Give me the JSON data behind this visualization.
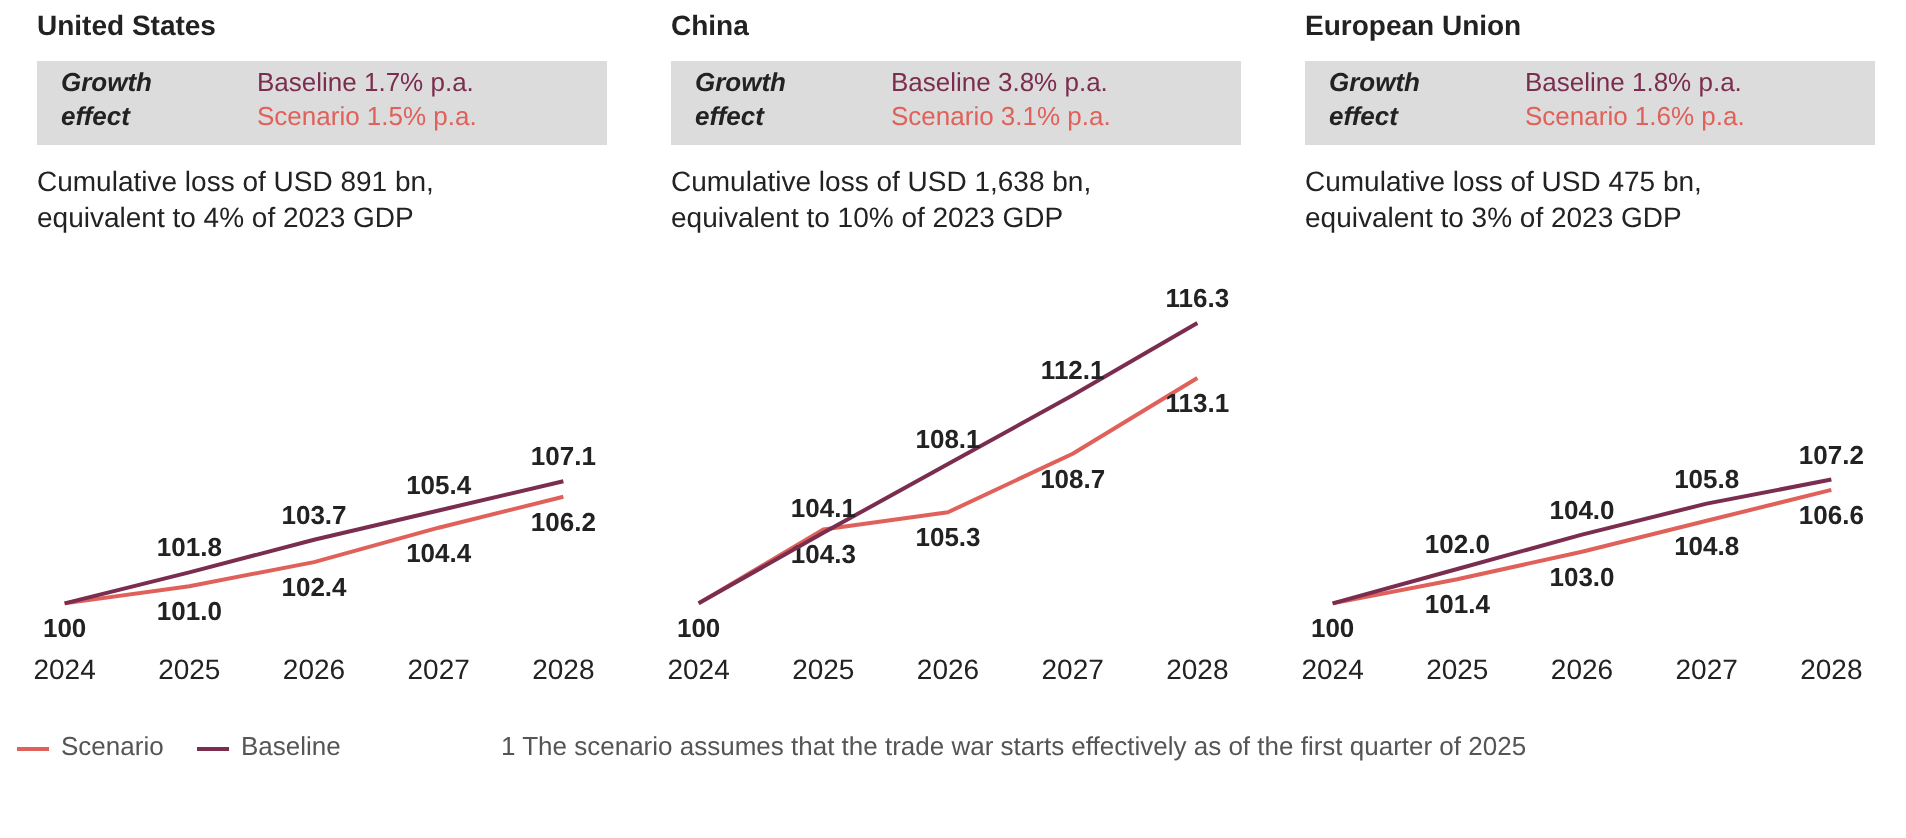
{
  "chart_data": [
    {
      "type": "line",
      "title": "United States",
      "subtitle": "Cumulative loss of USD 891 bn, equivalent to 4% of 2023 GDP",
      "annotations": [
        "Growth effect",
        "Baseline 1.7% p.a.",
        "Scenario 1.5% p.a.",
        "1 The scenario assumes that the trade war starts effectively as of the first quarter of 2025"
      ],
      "categories": [
        "2024",
        "2025",
        "2026",
        "2027",
        "2028"
      ],
      "series": [
        {
          "name": "Scenario",
          "color": "#e0605a",
          "values": [
            100,
            101.0,
            102.4,
            104.4,
            106.2
          ],
          "value_labels": [
            "100",
            "101.0",
            "102.4",
            "104.4",
            "106.2"
          ]
        },
        {
          "name": "Baseline",
          "color": "#7b2d4f",
          "values": [
            100,
            101.8,
            103.7,
            105.4,
            107.1
          ],
          "value_labels": [
            null,
            "101.8",
            "103.7",
            "105.4",
            "107.1"
          ]
        }
      ],
      "tick_labels": "x",
      "legend": "bottom",
      "grid": false
    },
    {
      "type": "line",
      "title": "China",
      "subtitle": "Cumulative loss of USD 1,638 bn, equivalent to 10% of 2023 GDP",
      "annotations": [
        "Growth effect",
        "Baseline 3.8% p.a.",
        "Scenario 3.1% p.a."
      ],
      "categories": [
        "2024",
        "2025",
        "2026",
        "2027",
        "2028"
      ],
      "series": [
        {
          "color": "#e0605a",
          "values": [
            100,
            104.3,
            105.3,
            108.7,
            113.1
          ],
          "value_labels": [
            "100",
            "104.3",
            "105.3",
            "108.7",
            "113.1"
          ]
        },
        {
          "color": "#7b2d4f",
          "values": [
            100,
            104.1,
            108.1,
            112.1,
            116.3
          ],
          "value_labels": [
            null,
            "104.1",
            "108.1",
            "112.1",
            "116.3"
          ]
        }
      ],
      "tick_labels": "x",
      "grid": false
    },
    {
      "type": "line",
      "title": "European Union",
      "subtitle": "Cumulative loss of USD 475 bn, equivalent to 3% of 2023 GDP",
      "annotations": [
        "Growth effect",
        "Baseline 1.8% p.a.",
        "Scenario 1.6% p.a."
      ],
      "categories": [
        "2024",
        "2025",
        "2026",
        "2027",
        "2028"
      ],
      "series": [
        {
          "color": "#e0605a",
          "values": [
            100,
            101.4,
            103.0,
            104.8,
            106.6
          ],
          "value_labels": [
            "100",
            "101.4",
            "103.0",
            "104.8",
            "106.6"
          ]
        },
        {
          "color": "#7b2d4f",
          "values": [
            100,
            102.0,
            104.0,
            105.8,
            107.2
          ],
          "value_labels": [
            null,
            "102.0",
            "104.0",
            "105.8",
            "107.2"
          ]
        }
      ],
      "tick_labels": "x",
      "grid": false
    }
  ]
}
